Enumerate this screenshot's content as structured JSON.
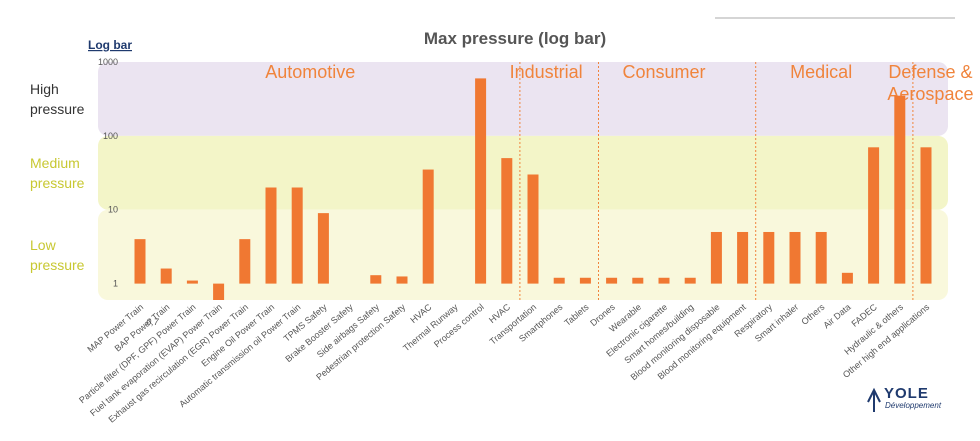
{
  "chart_data": {
    "type": "bar",
    "title": "Max pressure (log bar)",
    "unit_label": "Log bar",
    "yscale": "log",
    "ylim": [
      0.6,
      1000
    ],
    "y_ticks": [
      "1",
      "10",
      "100",
      "1000"
    ],
    "grid": false,
    "legend": "none",
    "bands": [
      {
        "label_lines": [
          "High",
          "pressure"
        ],
        "from": 100,
        "to": 1000,
        "color": "#ebe4f1",
        "text_color": "#333333"
      },
      {
        "label_lines": [
          "Medium",
          "pressure"
        ],
        "from": 10,
        "to": 100,
        "color": "#f3f5c8",
        "text_color": "#c8c832"
      },
      {
        "label_lines": [
          "Low",
          "pressure"
        ],
        "from": 0.6,
        "to": 10,
        "color": "#f9f8dc",
        "text_color": "#c8c832"
      }
    ],
    "segments": [
      {
        "label_lines": [
          "Automotive"
        ],
        "start": 0,
        "end": 14
      },
      {
        "label_lines": [
          "Industrial"
        ],
        "start": 15,
        "end": 17
      },
      {
        "label_lines": [
          "Consumer"
        ],
        "start": 18,
        "end": 23
      },
      {
        "label_lines": [
          "Medical"
        ],
        "start": 24,
        "end": 29
      },
      {
        "label_lines": [
          "Defense &",
          "Aerospace"
        ],
        "start": 30,
        "end": 32
      }
    ],
    "categories": [
      "MAP Power Train",
      "BAP Power Train",
      "Particle filter (DPF, GPF) Power Train",
      "Fuel tank evaporation (EVAP) Power Train",
      "Exhaust gas recirculation (EGR) Power Train",
      "Engine Oil Power Train",
      "Automatic transmission oil Power Train",
      "TPMS Safety",
      "Brake Booster Safety",
      "Side airbags Safety",
      "Pedestrian protection Safety",
      "HVAC",
      "Thermal Runway",
      "Process control",
      "HVAC",
      "Transportation",
      "Smartphones",
      "Tablets",
      "Drones",
      "Wearable",
      "Electronic cigarette",
      "Smart homes/building",
      "Blood monitoring disposable",
      "Blood monitoring equipment",
      "Respiratory",
      "Smart inhaler",
      "Others",
      "Air Data",
      "FADEC",
      "Hydraulic & others",
      "Other high end applications"
    ],
    "values": [
      4,
      1.6,
      1.1,
      0.6,
      4,
      20,
      20,
      9,
      null,
      1.3,
      1.25,
      35,
      null,
      600,
      50,
      30,
      1.2,
      1.2,
      1.2,
      1.2,
      1.2,
      1.2,
      5,
      5,
      5,
      5,
      5,
      1.4,
      70,
      350,
      70
    ],
    "bar_color": "#f07832",
    "annotations": [
      "0,7"
    ]
  },
  "logo": {
    "name": "YOLE",
    "sub": "Développement"
  }
}
